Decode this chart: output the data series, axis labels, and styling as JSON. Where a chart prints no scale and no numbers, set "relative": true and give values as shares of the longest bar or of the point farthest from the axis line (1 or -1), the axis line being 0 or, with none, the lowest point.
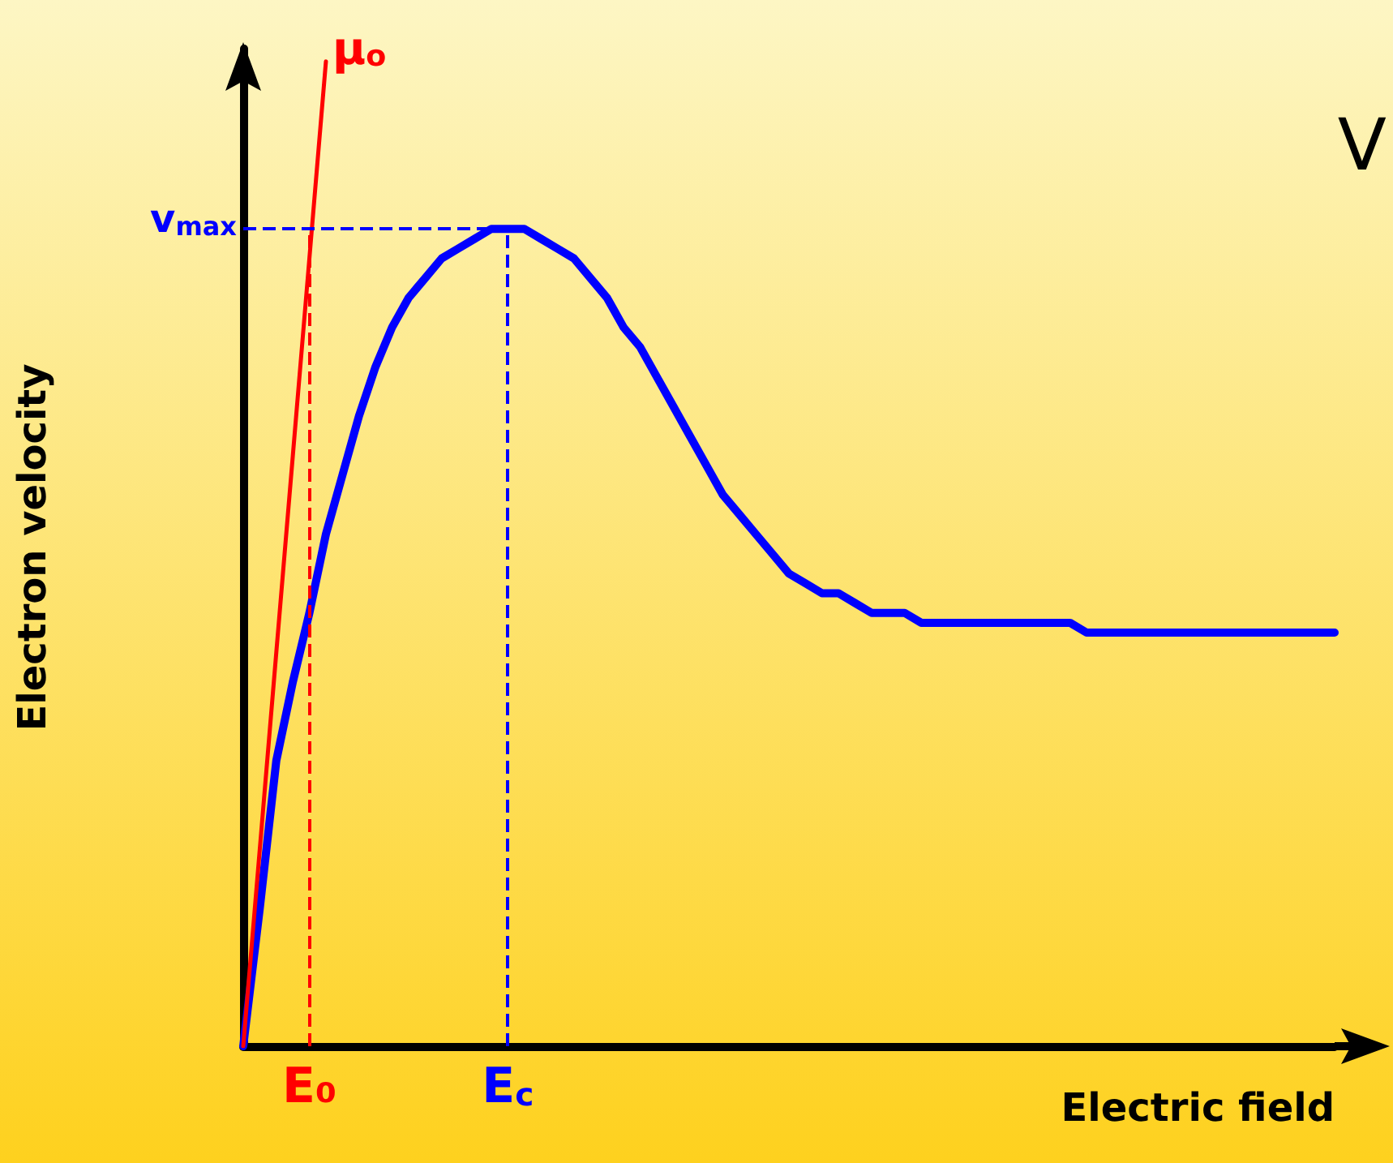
{
  "chart_data": {
    "type": "line",
    "relative": true,
    "xlabel": "Electric field",
    "ylabel": "Electron velocity",
    "annotations": [
      "V"
    ],
    "categories": [
      null,
      null,
      null,
      null,
      "E₀",
      null,
      null,
      null,
      null,
      null,
      null,
      null,
      null,
      null,
      null,
      null,
      "E$_{c}$",
      null,
      null,
      null,
      null,
      null,
      null,
      null,
      null,
      null,
      null,
      null,
      null,
      null,
      null,
      null,
      null,
      null,
      null,
      null,
      null,
      null,
      null,
      null,
      null,
      null,
      null,
      null,
      null,
      null,
      null,
      null,
      null,
      null,
      null,
      null,
      null,
      null,
      null,
      null,
      null,
      null,
      null,
      null,
      null,
      null,
      null,
      null,
      null,
      null,
      null
    ],
    "series": [
      {
        "color": "#0000ff",
        "values": [
          0,
          0.14,
          0.29,
          0.37,
          0.44,
          0.52,
          0.58,
          0.64,
          0.69,
          0.73,
          0.76,
          0.78,
          0.8,
          0.81,
          0.82,
          0.83,
          0.83,
          0.83,
          0.82,
          0.81,
          0.8,
          0.78,
          0.76,
          0.73,
          0.71,
          0.68,
          0.65,
          0.62,
          0.59,
          0.56,
          0.54,
          0.52,
          0.5,
          0.48,
          0.47,
          0.46,
          0.46,
          0.45,
          0.44,
          0.44,
          0.44,
          0.43,
          0.43,
          0.43,
          0.43,
          0.43,
          0.43,
          0.43,
          0.43,
          0.43,
          0.43,
          0.42,
          0.42,
          0.42,
          0.42,
          0.42,
          0.42,
          0.42,
          0.42,
          0.42,
          0.42,
          0.42,
          0.42,
          0.42,
          0.42,
          0.42,
          0.42
        ]
      },
      {
        "name": "μ$_{o}$",
        "color": "#ff0000",
        "values": [
          0,
          0.2,
          0.4,
          0.6,
          0.8,
          1,
          null,
          null,
          null,
          null,
          null,
          null,
          null,
          null,
          null,
          null,
          null,
          null,
          null,
          null,
          null,
          null,
          null,
          null,
          null,
          null,
          null,
          null,
          null,
          null,
          null,
          null,
          null,
          null,
          null,
          null,
          null,
          null,
          null,
          null,
          null,
          null,
          null,
          null,
          null,
          null,
          null,
          null,
          null,
          null,
          null,
          null,
          null,
          null,
          null,
          null,
          null,
          null,
          null,
          null,
          null,
          null,
          null,
          null,
          null,
          null,
          null
        ]
      }
    ],
    "ref_lines": [
      {
        "axis": "y",
        "value": 0.83,
        "label": "v$_{max}$",
        "color": "#0000ff",
        "line_style": "dashed"
      },
      {
        "axis": "x",
        "value": "E₀",
        "color": "#ff0000",
        "line_style": "dashed"
      },
      {
        "axis": "x",
        "value": "E$_{c}$",
        "color": "#0000ff",
        "line_style": "dashed"
      }
    ],
    "grid": false,
    "marker": "none",
    "line_style": "solid"
  }
}
